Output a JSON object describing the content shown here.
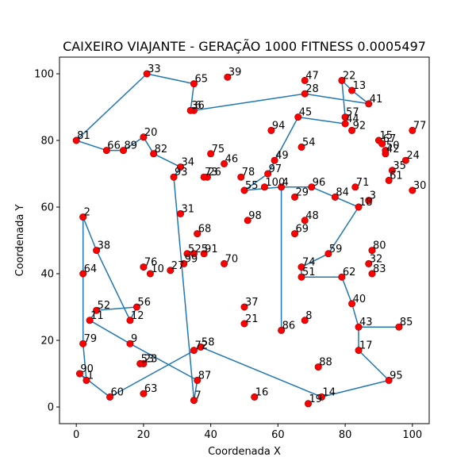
{
  "chart_data": {
    "type": "scatter",
    "title": "CAIXEIRO VIAJANTE - GERAÇÃO 1000 FITNESS 0.0005497",
    "xlabel": "Coordenada X",
    "ylabel": "Coordenada Y",
    "xlim": [
      -5,
      105
    ],
    "ylim": [
      -5,
      105
    ],
    "xticks": [
      0,
      20,
      40,
      60,
      80,
      100
    ],
    "yticks": [
      0,
      20,
      40,
      60,
      80,
      100
    ],
    "grid": false,
    "colors": {
      "route": "#1f77b4",
      "city": "#ff0000",
      "city_edge": "#8b0000"
    },
    "cities": [
      {
        "id": 1,
        "x": 3,
        "y": 8
      },
      {
        "id": 2,
        "x": 2,
        "y": 57
      },
      {
        "id": 3,
        "x": 87,
        "y": 62
      },
      {
        "id": 4,
        "x": 61,
        "y": 66
      },
      {
        "id": 5,
        "x": 33,
        "y": 46
      },
      {
        "id": 6,
        "x": 35,
        "y": 89
      },
      {
        "id": 7,
        "x": 35,
        "y": 2
      },
      {
        "id": 8,
        "x": 68,
        "y": 26
      },
      {
        "id": 9,
        "x": 16,
        "y": 19
      },
      {
        "id": 10,
        "x": 22,
        "y": 40
      },
      {
        "id": 11,
        "x": 4,
        "y": 26
      },
      {
        "id": 12,
        "x": 16,
        "y": 26
      },
      {
        "id": 13,
        "x": 82,
        "y": 95
      },
      {
        "id": 14,
        "x": 73,
        "y": 3
      },
      {
        "id": 15,
        "x": 90,
        "y": 80
      },
      {
        "id": 16,
        "x": 53,
        "y": 3
      },
      {
        "id": 17,
        "x": 84,
        "y": 17
      },
      {
        "id": 18,
        "x": 84,
        "y": 60
      },
      {
        "id": 19,
        "x": 69,
        "y": 1
      },
      {
        "id": 20,
        "x": 20,
        "y": 81
      },
      {
        "id": 21,
        "x": 50,
        "y": 25
      },
      {
        "id": 22,
        "x": 79,
        "y": 98
      },
      {
        "id": 23,
        "x": 20,
        "y": 13
      },
      {
        "id": 24,
        "x": 98,
        "y": 74
      },
      {
        "id": 25,
        "x": 35,
        "y": 46
      },
      {
        "id": 26,
        "x": 39,
        "y": 69
      },
      {
        "id": 27,
        "x": 28,
        "y": 41
      },
      {
        "id": 28,
        "x": 68,
        "y": 94
      },
      {
        "id": 29,
        "x": 65,
        "y": 63
      },
      {
        "id": 30,
        "x": 100,
        "y": 65
      },
      {
        "id": 31,
        "x": 31,
        "y": 58
      },
      {
        "id": 32,
        "x": 87,
        "y": 43
      },
      {
        "id": 33,
        "x": 21,
        "y": 100
      },
      {
        "id": 34,
        "x": 31,
        "y": 72
      },
      {
        "id": 35,
        "x": 94,
        "y": 71
      },
      {
        "id": 36,
        "x": 34,
        "y": 89
      },
      {
        "id": 37,
        "x": 50,
        "y": 30
      },
      {
        "id": 38,
        "x": 6,
        "y": 47
      },
      {
        "id": 39,
        "x": 45,
        "y": 99
      },
      {
        "id": 40,
        "x": 82,
        "y": 31
      },
      {
        "id": 41,
        "x": 87,
        "y": 91
      },
      {
        "id": 42,
        "x": 92,
        "y": 76
      },
      {
        "id": 43,
        "x": 84,
        "y": 24
      },
      {
        "id": 44,
        "x": 80,
        "y": 85
      },
      {
        "id": 45,
        "x": 66,
        "y": 87
      },
      {
        "id": 46,
        "x": 44,
        "y": 73
      },
      {
        "id": 47,
        "x": 68,
        "y": 98
      },
      {
        "id": 48,
        "x": 68,
        "y": 56
      },
      {
        "id": 49,
        "x": 59,
        "y": 74
      },
      {
        "id": 50,
        "x": 92,
        "y": 77
      },
      {
        "id": 51,
        "x": 67,
        "y": 39
      },
      {
        "id": 52,
        "x": 6,
        "y": 29
      },
      {
        "id": 53,
        "x": 19,
        "y": 13
      },
      {
        "id": 54,
        "x": 67,
        "y": 78
      },
      {
        "id": 55,
        "x": 50,
        "y": 65
      },
      {
        "id": 56,
        "x": 18,
        "y": 30
      },
      {
        "id": 57,
        "x": 80,
        "y": 87
      },
      {
        "id": 58,
        "x": 37,
        "y": 18
      },
      {
        "id": 59,
        "x": 75,
        "y": 46
      },
      {
        "id": 60,
        "x": 10,
        "y": 3
      },
      {
        "id": 61,
        "x": 93,
        "y": 68
      },
      {
        "id": 62,
        "x": 79,
        "y": 39
      },
      {
        "id": 63,
        "x": 20,
        "y": 4
      },
      {
        "id": 64,
        "x": 2,
        "y": 40
      },
      {
        "id": 65,
        "x": 35,
        "y": 97
      },
      {
        "id": 66,
        "x": 9,
        "y": 77
      },
      {
        "id": 67,
        "x": 91,
        "y": 79
      },
      {
        "id": 68,
        "x": 36,
        "y": 52
      },
      {
        "id": 69,
        "x": 65,
        "y": 52
      },
      {
        "id": 70,
        "x": 44,
        "y": 43
      },
      {
        "id": 71,
        "x": 83,
        "y": 66
      },
      {
        "id": 72,
        "x": 35,
        "y": 17
      },
      {
        "id": 73,
        "x": 38,
        "y": 69
      },
      {
        "id": 74,
        "x": 67,
        "y": 42
      },
      {
        "id": 75,
        "x": 40,
        "y": 76
      },
      {
        "id": 76,
        "x": 20,
        "y": 42
      },
      {
        "id": 77,
        "x": 100,
        "y": 83
      },
      {
        "id": 78,
        "x": 49,
        "y": 69
      },
      {
        "id": 79,
        "x": 2,
        "y": 19
      },
      {
        "id": 80,
        "x": 88,
        "y": 47
      },
      {
        "id": 81,
        "x": 0,
        "y": 80
      },
      {
        "id": 82,
        "x": 23,
        "y": 76
      },
      {
        "id": 83,
        "x": 88,
        "y": 40
      },
      {
        "id": 84,
        "x": 77,
        "y": 63
      },
      {
        "id": 85,
        "x": 96,
        "y": 24
      },
      {
        "id": 86,
        "x": 61,
        "y": 23
      },
      {
        "id": 87,
        "x": 36,
        "y": 8
      },
      {
        "id": 88,
        "x": 72,
        "y": 12
      },
      {
        "id": 89,
        "x": 14,
        "y": 77
      },
      {
        "id": 90,
        "x": 1,
        "y": 10
      },
      {
        "id": 91,
        "x": 38,
        "y": 46
      },
      {
        "id": 92,
        "x": 82,
        "y": 83
      },
      {
        "id": 93,
        "x": 29,
        "y": 69
      },
      {
        "id": 94,
        "x": 58,
        "y": 83
      },
      {
        "id": 95,
        "x": 93,
        "y": 8
      },
      {
        "id": 96,
        "x": 70,
        "y": 66
      },
      {
        "id": 97,
        "x": 57,
        "y": 70
      },
      {
        "id": 98,
        "x": 51,
        "y": 56
      },
      {
        "id": 99,
        "x": 32,
        "y": 43
      },
      {
        "id": 100,
        "x": 56,
        "y": 66
      }
    ],
    "route": [
      81,
      66,
      89,
      20,
      82,
      34,
      93,
      7,
      87,
      9,
      11,
      52,
      56,
      12,
      38,
      2,
      64,
      79,
      1,
      90,
      60,
      58,
      14,
      95,
      17,
      43,
      85,
      43,
      40,
      62,
      51,
      74,
      59,
      18,
      96,
      4,
      86,
      4,
      55,
      97,
      45,
      44,
      57,
      22,
      13,
      41,
      28,
      6,
      36,
      65,
      33,
      81
    ]
  }
}
